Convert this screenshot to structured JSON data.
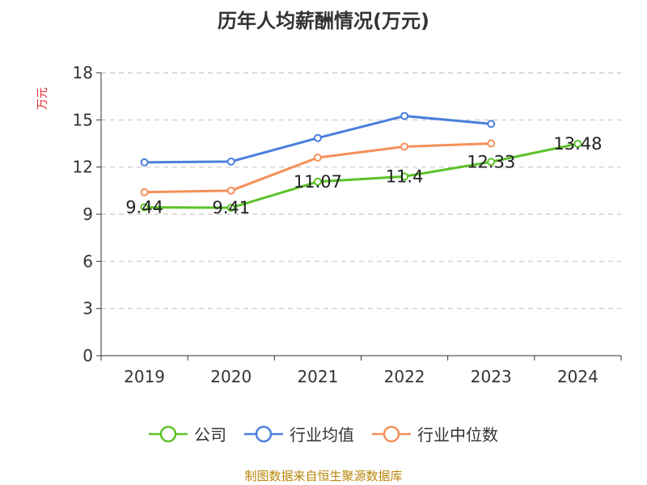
{
  "chart_data": {
    "type": "line",
    "title": "历年人均薪酬情况(万元)",
    "ylabel": "万元",
    "xlabel": "",
    "categories": [
      "2019",
      "2020",
      "2021",
      "2022",
      "2023",
      "2024"
    ],
    "ylim": [
      0,
      18
    ],
    "yticks": [
      0,
      3,
      6,
      9,
      12,
      15,
      18
    ],
    "grid": true,
    "legend_position": "bottom",
    "series": [
      {
        "name": "公司",
        "color": "#5cc22a",
        "values": [
          9.44,
          9.41,
          11.07,
          11.4,
          12.33,
          13.48
        ],
        "labels": [
          "9.44",
          "9.41",
          "11.07",
          "11.4",
          "12.33",
          "13.48"
        ]
      },
      {
        "name": "行业均值",
        "color": "#4a7fdb",
        "values": [
          12.3,
          12.35,
          13.85,
          15.25,
          14.75,
          null
        ]
      },
      {
        "name": "行业中位数",
        "color": "#f4905a",
        "values": [
          10.4,
          10.5,
          12.6,
          13.3,
          13.5,
          null
        ]
      }
    ]
  },
  "source": "制图数据来自恒生聚源数据库"
}
